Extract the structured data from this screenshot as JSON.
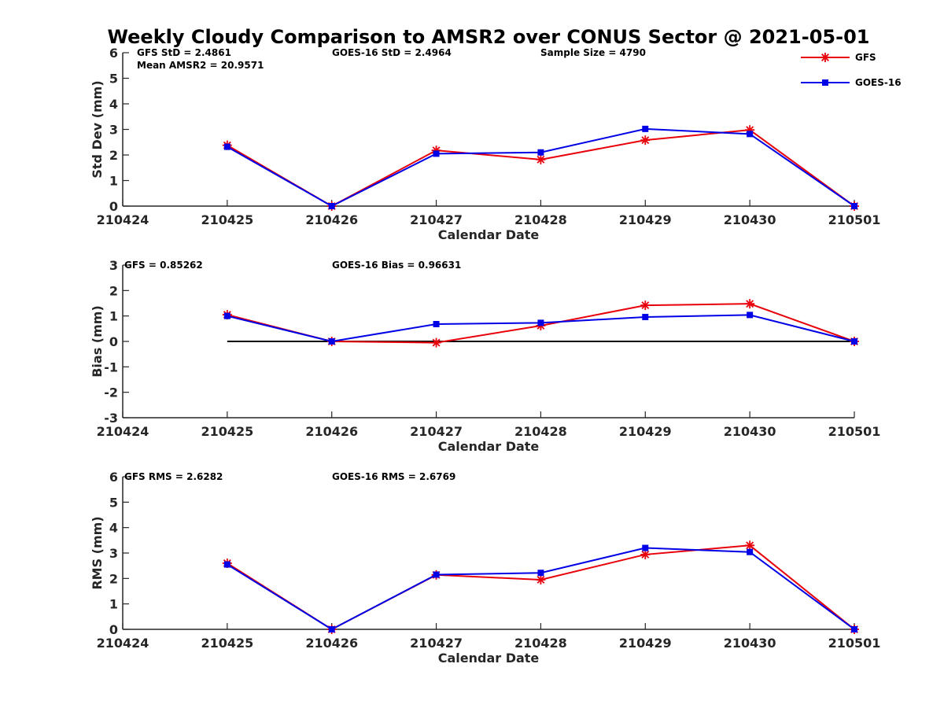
{
  "title": "Weekly Cloudy Comparison to AMSR2 over CONUS Sector @ 2021-05-01",
  "legend": {
    "placement": "top-right",
    "entries": [
      {
        "label": "GFS",
        "color": "#e8000b",
        "marker": "asterisk"
      },
      {
        "label": "GOES-16",
        "color": "#0000e6",
        "marker": "square"
      }
    ]
  },
  "chart_data": [
    {
      "type": "line",
      "xlabel": "Calendar Date",
      "ylabel": "Std Dev (mm)",
      "x_ticks": [
        "210424",
        "210425",
        "210426",
        "210427",
        "210428",
        "210429",
        "210430",
        "210501"
      ],
      "ylim": [
        0,
        6
      ],
      "y_ticks": [
        "0",
        "1",
        "2",
        "3",
        "4",
        "5",
        "6"
      ],
      "annotations": [
        "GFS StD = 2.4861",
        "Mean AMSR2 = 20.9571",
        "GOES-16 StD = 2.4964",
        "Sample Size = 4790"
      ],
      "series": [
        {
          "name": "GFS",
          "color": "#e8000b",
          "marker": "asterisk",
          "x": [
            "210425",
            "210426",
            "210427",
            "210428",
            "210429",
            "210430",
            "210501"
          ],
          "values": [
            2.38,
            0.0,
            2.18,
            1.82,
            2.58,
            2.98,
            0.0
          ]
        },
        {
          "name": "GOES-16",
          "color": "#0000e6",
          "marker": "square",
          "x": [
            "210425",
            "210426",
            "210427",
            "210428",
            "210429",
            "210430",
            "210501"
          ],
          "values": [
            2.32,
            0.0,
            2.05,
            2.1,
            3.02,
            2.82,
            0.0
          ]
        }
      ]
    },
    {
      "type": "line",
      "xlabel": "Calendar Date",
      "ylabel": "Bias (mm)",
      "x_ticks": [
        "210424",
        "210425",
        "210426",
        "210427",
        "210428",
        "210429",
        "210430",
        "210501"
      ],
      "ylim": [
        -3,
        3
      ],
      "y_ticks": [
        "-3",
        "-2",
        "-1",
        "0",
        "1",
        "2",
        "3"
      ],
      "annotations": [
        "GFS = 0.85262",
        "GOES-16 Bias  = 0.96631"
      ],
      "zero_line": {
        "y": 0,
        "from": "210425",
        "to": "210501",
        "color": "#000000"
      },
      "series": [
        {
          "name": "GFS",
          "color": "#e8000b",
          "marker": "asterisk",
          "x": [
            "210425",
            "210426",
            "210427",
            "210428",
            "210429",
            "210430",
            "210501"
          ],
          "values": [
            1.05,
            0.0,
            -0.05,
            0.62,
            1.42,
            1.48,
            0.0
          ]
        },
        {
          "name": "GOES-16",
          "color": "#0000e6",
          "marker": "square",
          "x": [
            "210425",
            "210426",
            "210427",
            "210428",
            "210429",
            "210430",
            "210501"
          ],
          "values": [
            1.0,
            0.0,
            0.68,
            0.73,
            0.96,
            1.04,
            0.0
          ]
        }
      ]
    },
    {
      "type": "line",
      "xlabel": "Calendar Date",
      "ylabel": "RMS (mm)",
      "x_ticks": [
        "210424",
        "210425",
        "210426",
        "210427",
        "210428",
        "210429",
        "210430",
        "210501"
      ],
      "ylim": [
        0,
        6
      ],
      "y_ticks": [
        "0",
        "1",
        "2",
        "3",
        "4",
        "5",
        "6"
      ],
      "annotations": [
        "GFS RMS = 2.6282",
        "GOES-16 RMS = 2.6769"
      ],
      "series": [
        {
          "name": "GFS",
          "color": "#e8000b",
          "marker": "asterisk",
          "x": [
            "210425",
            "210426",
            "210427",
            "210428",
            "210429",
            "210430",
            "210501"
          ],
          "values": [
            2.6,
            0.0,
            2.14,
            1.95,
            2.94,
            3.3,
            0.0
          ]
        },
        {
          "name": "GOES-16",
          "color": "#0000e6",
          "marker": "square",
          "x": [
            "210425",
            "210426",
            "210427",
            "210428",
            "210429",
            "210430",
            "210501"
          ],
          "values": [
            2.55,
            0.0,
            2.15,
            2.22,
            3.2,
            3.04,
            0.0
          ]
        }
      ]
    }
  ]
}
